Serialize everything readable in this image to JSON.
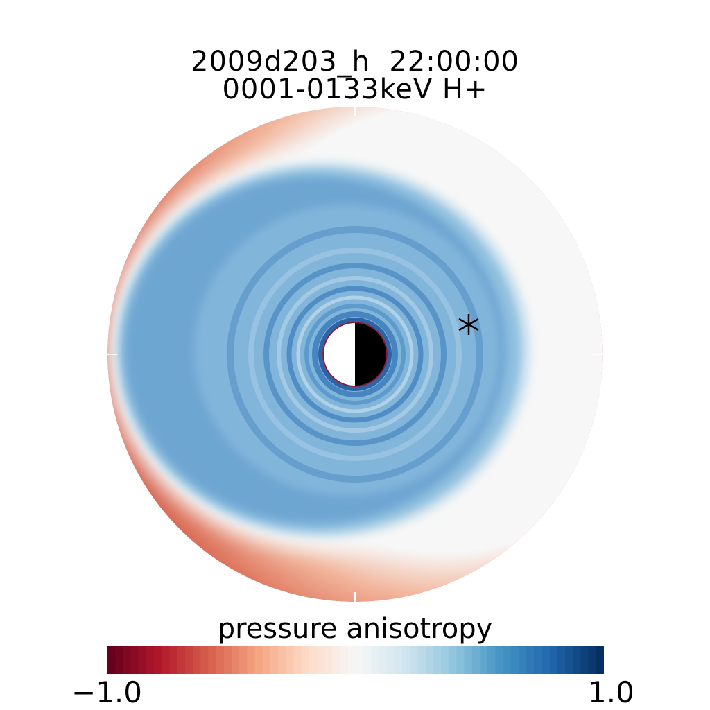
{
  "title": {
    "line1": "2009d203_h  22:00:00",
    "line2": "0001-0133keV H+"
  },
  "marker": "asterisk",
  "colorbar": {
    "label": "pressure anisotropy",
    "min_label": "-1.0",
    "max_label": "1.0",
    "range": [
      -1.0,
      1.0
    ],
    "colormap": [
      "#67001f",
      "#b2182b",
      "#d6604d",
      "#f4a582",
      "#fddbc7",
      "#f7f7f7",
      "#d1e5f0",
      "#92c5de",
      "#4393c3",
      "#2166ac",
      "#053061"
    ]
  },
  "colors": {
    "outer_red": "#d1584a",
    "deep_red": "#c8453c",
    "white": "#f7f7f7",
    "blue_main": "#72a9d3",
    "blue_light": "#a2c8e2",
    "blue_dark": "#4f8fc6",
    "earth_day": "#ffffff",
    "earth_night": "#000000",
    "earth_rim": "#8b1a3a"
  }
}
